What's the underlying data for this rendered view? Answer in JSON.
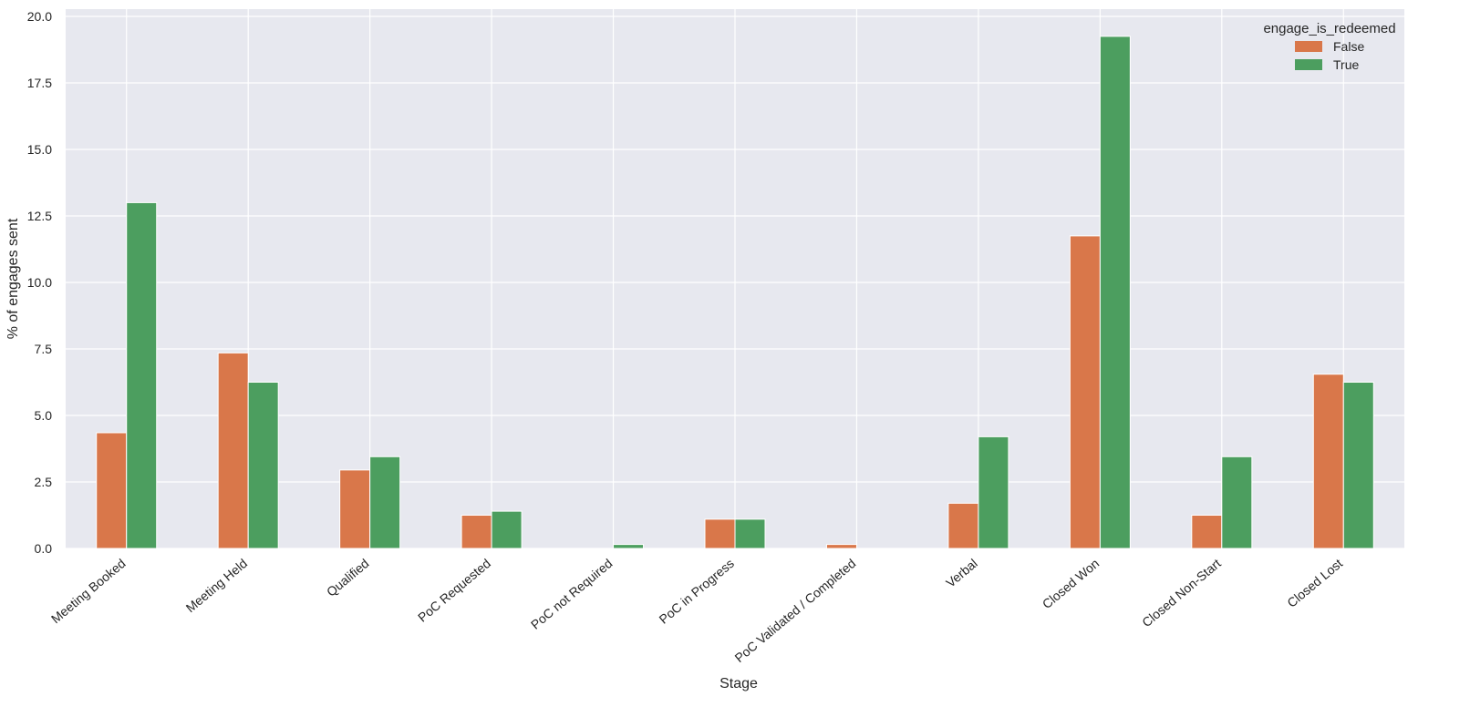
{
  "chart_data": {
    "type": "bar",
    "title": "",
    "xlabel": "Stage",
    "ylabel": "% of engages sent",
    "categories": [
      "Meeting Booked",
      "Meeting Held",
      "Qualified",
      "PoC Requested",
      "PoC not Required",
      "PoC in Progress",
      "PoC Validated / Completed",
      "Verbal",
      "Closed Won",
      "Closed Non-Start",
      "Closed Lost"
    ],
    "series": [
      {
        "name": "False",
        "color": "#d9774a",
        "values": [
          4.35,
          7.35,
          2.95,
          1.25,
          0.0,
          1.1,
          0.15,
          1.7,
          11.75,
          1.25,
          6.55
        ]
      },
      {
        "name": "True",
        "color": "#4c9e5f",
        "values": [
          13.0,
          6.25,
          3.45,
          1.4,
          0.15,
          1.1,
          0.0,
          4.2,
          19.25,
          3.45,
          6.25
        ]
      }
    ],
    "ylim": [
      0,
      20
    ],
    "yticks": [
      "0.0",
      "2.5",
      "5.0",
      "7.5",
      "10.0",
      "12.5",
      "15.0",
      "17.5",
      "20.0"
    ],
    "legend": {
      "title": "engage_is_redeemed",
      "position": "top-right"
    },
    "grid": true,
    "background_color": "#e7e8ef",
    "grid_color": "#ffffff"
  }
}
